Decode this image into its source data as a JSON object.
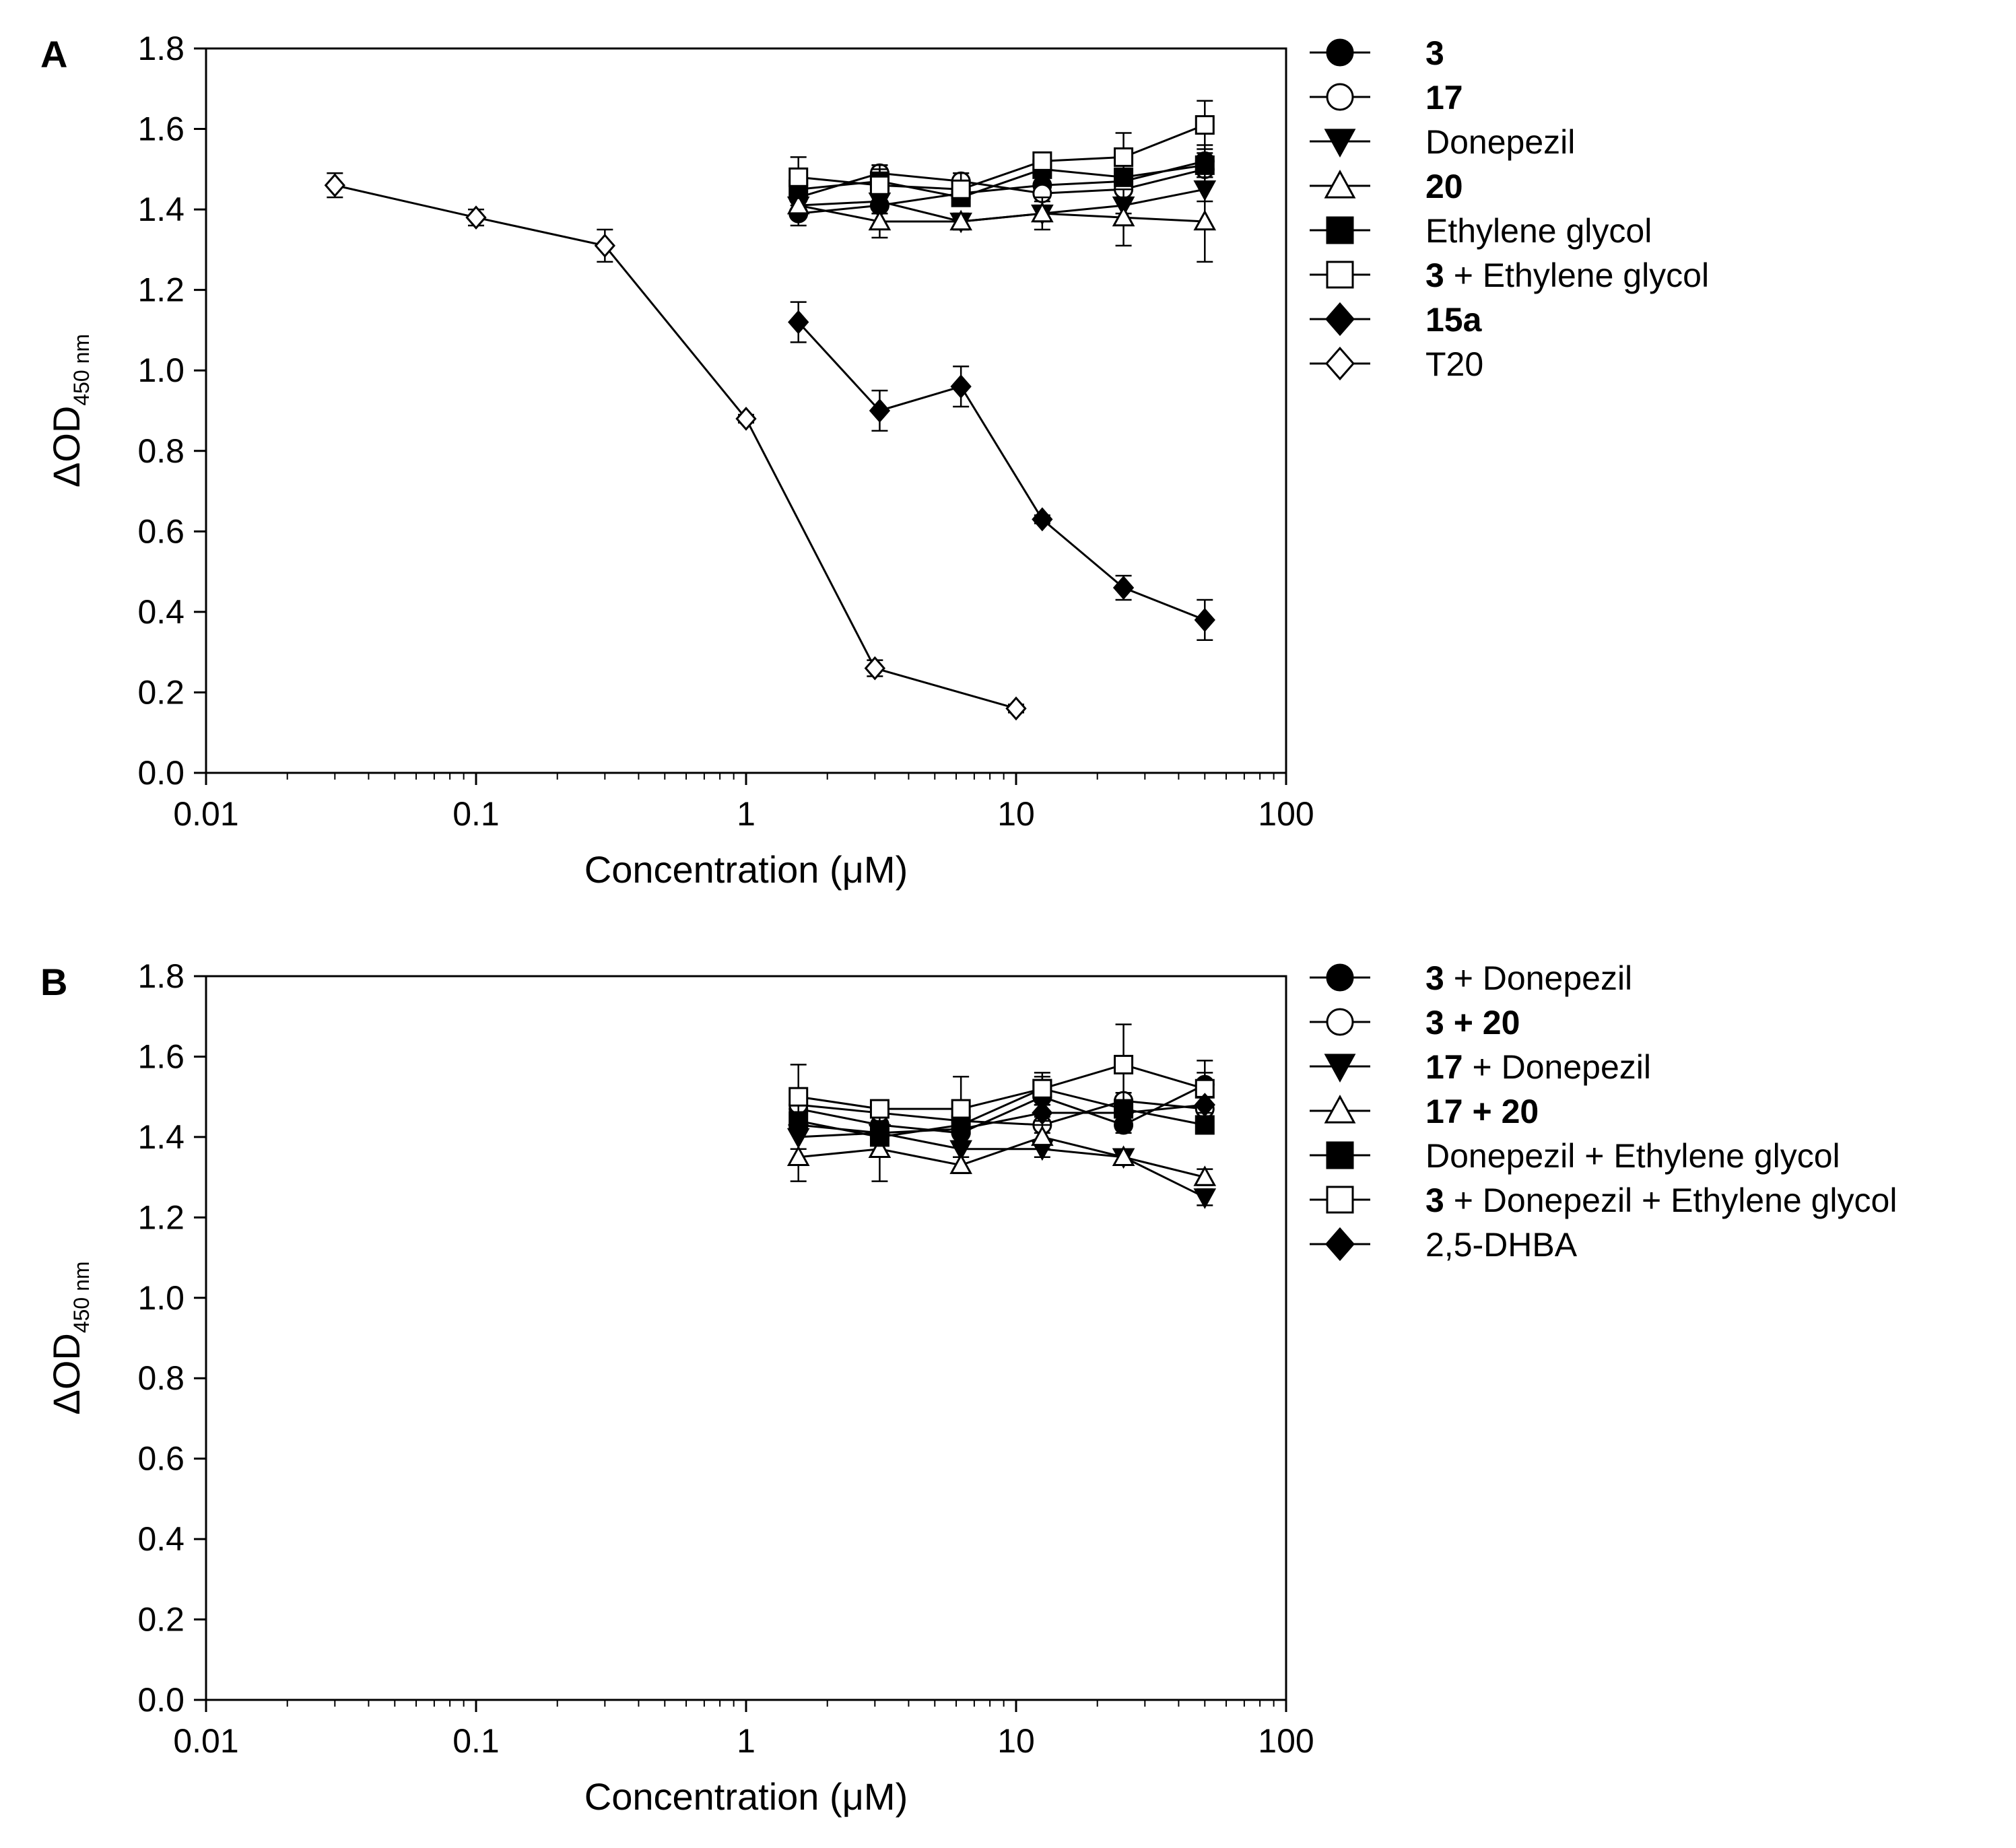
{
  "chart_data": [
    {
      "type": "line",
      "panel": "A",
      "xscale": "log",
      "xlim": [
        0.01,
        100
      ],
      "ylim": [
        0,
        1.8
      ],
      "xticks": [
        0.01,
        0.1,
        1,
        10,
        100
      ],
      "xtick_labels": [
        "0.01",
        "0.1",
        "1",
        "10",
        "100"
      ],
      "yticks": [
        0,
        0.2,
        0.4,
        0.6,
        0.8,
        1.0,
        1.2,
        1.4,
        1.6,
        1.8
      ],
      "ytick_labels": [
        "0.0",
        "0.2",
        "0.4",
        "0.6",
        "0.8",
        "1.0",
        "1.2",
        "1.4",
        "1.6",
        "1.8"
      ],
      "xlabel": "Concentration (μM)",
      "ylabel_main": "ΔOD",
      "ylabel_sub": "450 nm",
      "legend_position": "right",
      "series": [
        {
          "name": "3",
          "label_parts": [
            {
              "text": "3",
              "bold": true
            }
          ],
          "marker": "circle",
          "fill": "filled",
          "x": [
            1.5625,
            3.125,
            6.25,
            12.5,
            25,
            50
          ],
          "y": [
            1.39,
            1.41,
            1.44,
            1.46,
            1.47,
            1.52
          ],
          "err": [
            0.03,
            0.02,
            0.02,
            0.02,
            0.03,
            0.04
          ]
        },
        {
          "name": "17",
          "label_parts": [
            {
              "text": "17",
              "bold": true
            }
          ],
          "marker": "circle",
          "fill": "open",
          "x": [
            1.5625,
            3.125,
            6.25,
            12.5,
            25,
            50
          ],
          "y": [
            1.43,
            1.49,
            1.47,
            1.44,
            1.45,
            1.5
          ],
          "err": [
            0.02,
            0.02,
            0.02,
            0.02,
            0.02,
            0.03
          ]
        },
        {
          "name": "Donepezil",
          "label_parts": [
            {
              "text": "Donepezil",
              "bold": false
            }
          ],
          "marker": "triangle-down",
          "fill": "filled",
          "x": [
            1.5625,
            3.125,
            6.25,
            12.5,
            25,
            50
          ],
          "y": [
            1.41,
            1.42,
            1.37,
            1.39,
            1.41,
            1.45
          ],
          "err": [
            0.02,
            0.03,
            0.02,
            0.02,
            0.02,
            0.03
          ]
        },
        {
          "name": "20",
          "label_parts": [
            {
              "text": "20",
              "bold": true
            }
          ],
          "marker": "triangle-up",
          "fill": "open",
          "x": [
            1.5625,
            3.125,
            6.25,
            12.5,
            25,
            50
          ],
          "y": [
            1.41,
            1.37,
            1.37,
            1.39,
            1.38,
            1.37
          ],
          "err": [
            0.03,
            0.04,
            0.02,
            0.04,
            0.07,
            0.1
          ]
        },
        {
          "name": "Ethylene glycol",
          "label_parts": [
            {
              "text": "Ethylene glycol",
              "bold": false
            }
          ],
          "marker": "square",
          "fill": "filled",
          "x": [
            1.5625,
            3.125,
            6.25,
            12.5,
            25,
            50
          ],
          "y": [
            1.45,
            1.47,
            1.43,
            1.5,
            1.48,
            1.51
          ],
          "err": [
            0.02,
            0.03,
            0.02,
            0.02,
            0.02,
            0.03
          ]
        },
        {
          "name": "3 + Ethylene glycol",
          "label_parts": [
            {
              "text": "3",
              "bold": true
            },
            {
              "text": " + Ethylene glycol",
              "bold": false
            }
          ],
          "marker": "square",
          "fill": "open",
          "x": [
            1.5625,
            3.125,
            6.25,
            12.5,
            25,
            50
          ],
          "y": [
            1.48,
            1.46,
            1.45,
            1.52,
            1.53,
            1.61
          ],
          "err": [
            0.05,
            0.05,
            0.04,
            0.02,
            0.06,
            0.06
          ]
        },
        {
          "name": "15a",
          "label_parts": [
            {
              "text": "15a",
              "bold": true
            }
          ],
          "marker": "diamond",
          "fill": "filled",
          "x": [
            1.5625,
            3.125,
            6.25,
            12.5,
            25,
            50
          ],
          "y": [
            1.12,
            0.9,
            0.96,
            0.63,
            0.46,
            0.38
          ],
          "err": [
            0.05,
            0.05,
            0.05,
            0.01,
            0.03,
            0.05
          ]
        },
        {
          "name": "T20",
          "label_parts": [
            {
              "text": "T20",
              "bold": false
            }
          ],
          "marker": "diamond",
          "fill": "open",
          "x": [
            0.03,
            0.1,
            0.3,
            1,
            3,
            10
          ],
          "y": [
            1.46,
            1.38,
            1.31,
            0.88,
            0.26,
            0.16
          ],
          "err": [
            0.03,
            0.02,
            0.04,
            0.01,
            0.02,
            0.01
          ]
        }
      ]
    },
    {
      "type": "line",
      "panel": "B",
      "xscale": "log",
      "xlim": [
        0.01,
        100
      ],
      "ylim": [
        0,
        1.8
      ],
      "xticks": [
        0.01,
        0.1,
        1,
        10,
        100
      ],
      "xtick_labels": [
        "0.01",
        "0.1",
        "1",
        "10",
        "100"
      ],
      "yticks": [
        0,
        0.2,
        0.4,
        0.6,
        0.8,
        1.0,
        1.2,
        1.4,
        1.6,
        1.8
      ],
      "ytick_labels": [
        "0.0",
        "0.2",
        "0.4",
        "0.6",
        "0.8",
        "1.0",
        "1.2",
        "1.4",
        "1.6",
        "1.8"
      ],
      "xlabel": "Concentration (μM)",
      "ylabel_main": "ΔOD",
      "ylabel_sub": "450 nm",
      "legend_position": "right",
      "series": [
        {
          "name": "3 + Donepezil",
          "label_parts": [
            {
              "text": "3",
              "bold": true
            },
            {
              "text": " + Donepezil",
              "bold": false
            }
          ],
          "marker": "circle",
          "fill": "filled",
          "x": [
            1.5625,
            3.125,
            6.25,
            12.5,
            25,
            50
          ],
          "y": [
            1.47,
            1.43,
            1.41,
            1.5,
            1.43,
            1.53
          ],
          "err": [
            0.02,
            0.02,
            0.03,
            0.02,
            0.02,
            0.03
          ]
        },
        {
          "name": "3 + 20",
          "label_parts": [
            {
              "text": "3 + 20",
              "bold": true
            }
          ],
          "marker": "circle",
          "fill": "open",
          "x": [
            1.5625,
            3.125,
            6.25,
            12.5,
            25,
            50
          ],
          "y": [
            1.48,
            1.46,
            1.44,
            1.43,
            1.49,
            1.47
          ],
          "err": [
            0.02,
            0.02,
            0.03,
            0.02,
            0.02,
            0.03
          ]
        },
        {
          "name": "17 + Donepezil",
          "label_parts": [
            {
              "text": "17",
              "bold": true
            },
            {
              "text": " + Donepezil",
              "bold": false
            }
          ],
          "marker": "triangle-down",
          "fill": "filled",
          "x": [
            1.5625,
            3.125,
            6.25,
            12.5,
            25,
            50
          ],
          "y": [
            1.4,
            1.41,
            1.37,
            1.37,
            1.35,
            1.25
          ],
          "err": [
            0.03,
            0.03,
            0.02,
            0.02,
            0.02,
            0.02
          ]
        },
        {
          "name": "17 + 20",
          "label_parts": [
            {
              "text": "17 + 20",
              "bold": true
            }
          ],
          "marker": "triangle-up",
          "fill": "open",
          "x": [
            1.5625,
            3.125,
            6.25,
            12.5,
            25,
            50
          ],
          "y": [
            1.35,
            1.37,
            1.33,
            1.4,
            1.35,
            1.3
          ],
          "err": [
            0.06,
            0.08,
            0.02,
            0.03,
            0.02,
            0.02
          ]
        },
        {
          "name": "Donepezil + Ethylene glycol",
          "label_parts": [
            {
              "text": "Donepezil + Ethylene glycol",
              "bold": false
            }
          ],
          "marker": "square",
          "fill": "filled",
          "x": [
            1.5625,
            3.125,
            6.25,
            12.5,
            25,
            50
          ],
          "y": [
            1.44,
            1.4,
            1.43,
            1.52,
            1.47,
            1.43
          ],
          "err": [
            0.02,
            0.02,
            0.02,
            0.03,
            0.02,
            0.02
          ]
        },
        {
          "name": "3 + Donepezil + Ethylene glycol",
          "label_parts": [
            {
              "text": "3",
              "bold": true
            },
            {
              "text": " + Donepezil + Ethylene glycol",
              "bold": false
            }
          ],
          "marker": "square",
          "fill": "open",
          "x": [
            1.5625,
            3.125,
            6.25,
            12.5,
            25,
            50
          ],
          "y": [
            1.5,
            1.47,
            1.47,
            1.52,
            1.58,
            1.52
          ],
          "err": [
            0.08,
            0.02,
            0.08,
            0.04,
            0.1,
            0.07
          ]
        },
        {
          "name": "2,5-DHBA",
          "label_parts": [
            {
              "text": "2,5-DHBA",
              "bold": false
            }
          ],
          "marker": "diamond",
          "fill": "filled",
          "x": [
            1.5625,
            3.125,
            6.25,
            12.5,
            25,
            50
          ],
          "y": [
            1.43,
            1.41,
            1.42,
            1.46,
            1.46,
            1.48
          ],
          "err": [
            0.02,
            0.02,
            0.02,
            0.02,
            0.02,
            0.02
          ]
        }
      ]
    }
  ]
}
